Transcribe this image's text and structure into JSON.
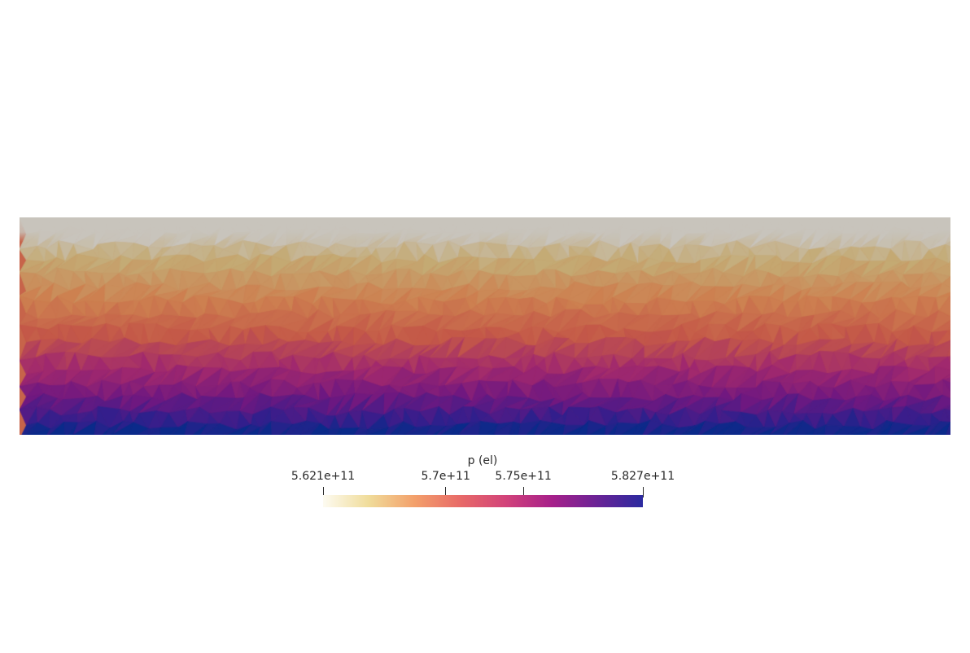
{
  "colorbar": {
    "title": "p (el)",
    "min": 562100000000.0,
    "max": 582700000000.0,
    "ticks": [
      {
        "value": 562100000000.0,
        "label": "5.621e+11"
      },
      {
        "value": 570000000000.0,
        "label": "5.7e+11"
      },
      {
        "value": 575000000000.0,
        "label": "5.75e+11"
      },
      {
        "value": 582700000000.0,
        "label": "5.827e+11"
      }
    ],
    "colors": [
      "#fdfbf1",
      "#f0dc9a",
      "#f3a06b",
      "#e86a68",
      "#d2437a",
      "#a7208a",
      "#6a2396",
      "#2b2aa0"
    ]
  },
  "field": {
    "top_color": "#c8c4bc",
    "bottom_color": "#0a2a8a"
  }
}
